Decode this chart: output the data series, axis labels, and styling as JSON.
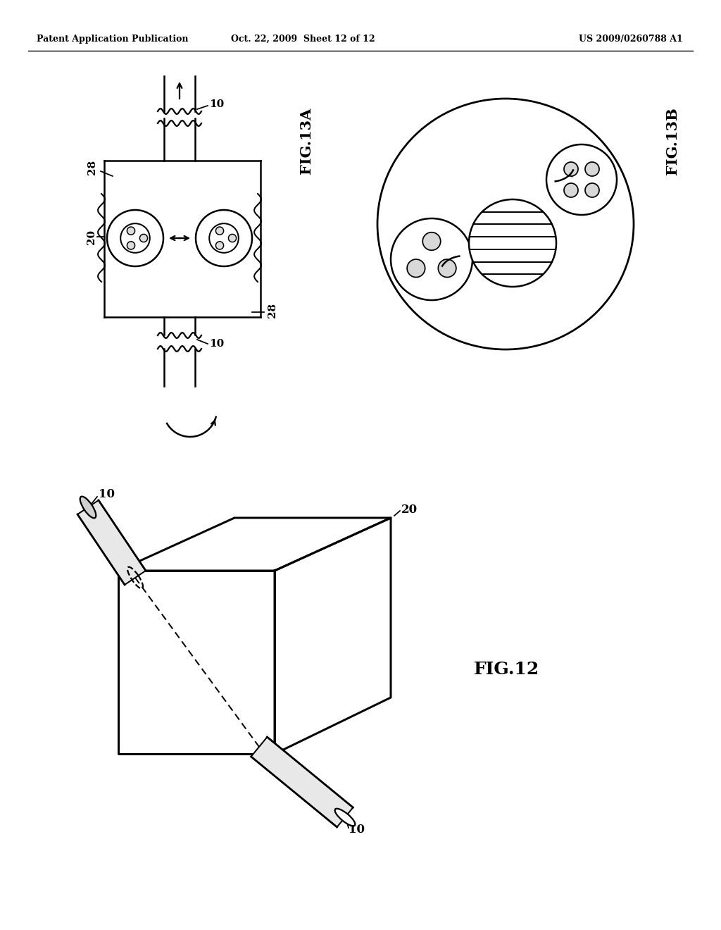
{
  "background_color": "#ffffff",
  "header_left": "Patent Application Publication",
  "header_mid": "Oct. 22, 2009  Sheet 12 of 12",
  "header_right": "US 2009/0260788 A1",
  "fig12_label": "FIG.12",
  "fig13a_label": "FIG.13A",
  "fig13b_label": "FIG.13B",
  "label_10": "10",
  "label_20": "20",
  "label_28": "28",
  "line_color": "#000000",
  "line_width": 1.8
}
